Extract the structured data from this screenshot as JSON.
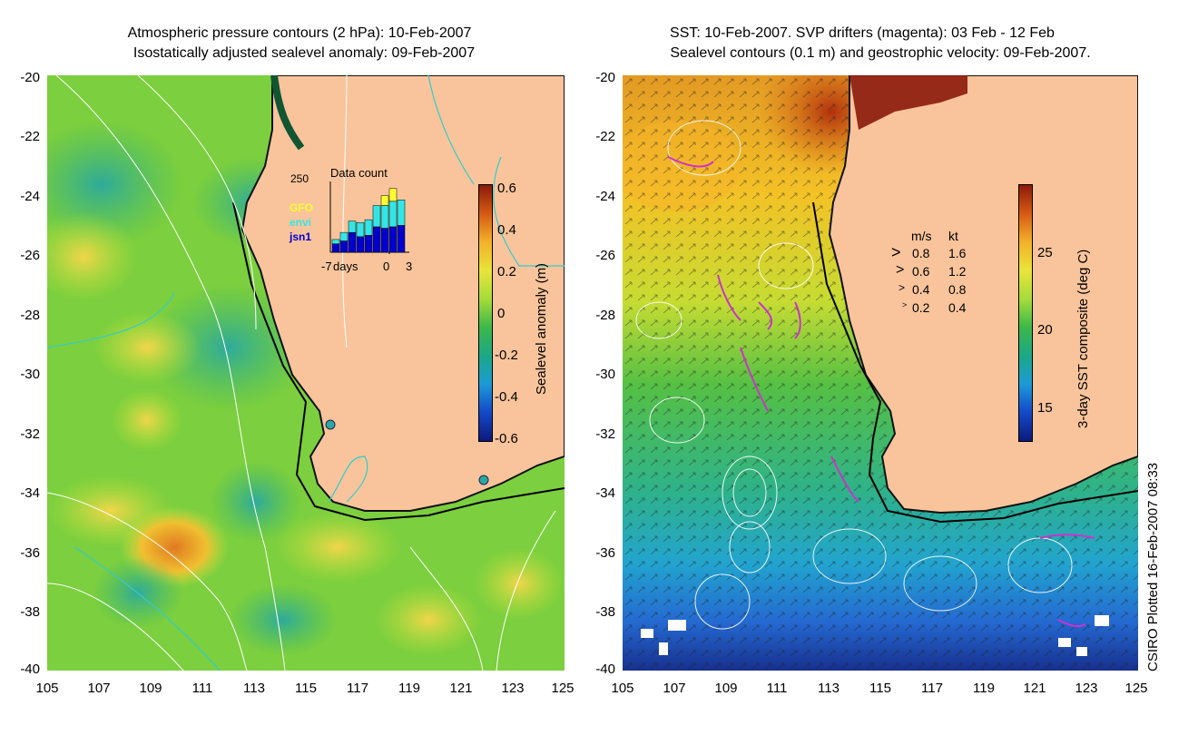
{
  "left_panel": {
    "title_line1": "Atmospheric pressure contours (2 hPa): 10-Feb-2007",
    "title_line2": "Isostatically adjusted sealevel anomaly: 09-Feb-2007",
    "x_ticks": [
      "105",
      "107",
      "109",
      "111",
      "113",
      "115",
      "117",
      "119",
      "121",
      "123",
      "125"
    ],
    "y_ticks": [
      "-20",
      "-22",
      "-24",
      "-26",
      "-28",
      "-30",
      "-32",
      "-34",
      "-36",
      "-38",
      "-40"
    ],
    "colorbar": {
      "label": "Sealevel anomaly (m)",
      "ticks": [
        "0.6",
        "0.4",
        "0.2",
        "0",
        "-0.2",
        "-0.4",
        "-0.6"
      ]
    },
    "inset": {
      "title": "Data count",
      "ymax_label": "250",
      "x_left": "-7",
      "x_days": "days",
      "x_zero": "0",
      "x_right": "3",
      "legend": [
        {
          "name": "GFO",
          "color": "#ffff33"
        },
        {
          "name": "envi",
          "color": "#33e6e6"
        },
        {
          "name": "jsn1",
          "color": "#0000cc"
        }
      ],
      "bars": [
        {
          "jsn1": 30,
          "envi": 15,
          "gfo": 0
        },
        {
          "jsn1": 40,
          "envi": 30,
          "gfo": 0
        },
        {
          "jsn1": 70,
          "envi": 40,
          "gfo": 0
        },
        {
          "jsn1": 55,
          "envi": 50,
          "gfo": 0
        },
        {
          "jsn1": 60,
          "envi": 55,
          "gfo": 0
        },
        {
          "jsn1": 90,
          "envi": 75,
          "gfo": 0
        },
        {
          "jsn1": 85,
          "envi": 80,
          "gfo": 35
        },
        {
          "jsn1": 90,
          "envi": 90,
          "gfo": 45
        },
        {
          "jsn1": 95,
          "envi": 90,
          "gfo": 0
        }
      ]
    }
  },
  "right_panel": {
    "title_line1": "SST: 10-Feb-2007. SVP drifters (magenta): 03 Feb - 12 Feb",
    "title_line2": "Sealevel contours (0.1 m) and geostrophic velocity: 09-Feb-2007.",
    "x_ticks": [
      "105",
      "107",
      "109",
      "111",
      "113",
      "115",
      "117",
      "119",
      "121",
      "123",
      "125"
    ],
    "y_ticks": [
      "-20",
      "-22",
      "-24",
      "-26",
      "-28",
      "-30",
      "-32",
      "-34",
      "-36",
      "-38",
      "-40"
    ],
    "colorbar": {
      "label": "3-day SST composite (deg C)",
      "ticks": [
        "25",
        "20",
        "15"
      ]
    },
    "velocity_legend": {
      "header_ms": "m/s",
      "header_kt": "kt",
      "rows": [
        {
          "ms": "0.8",
          "kt": "1.6"
        },
        {
          "ms": "0.6",
          "kt": "1.2"
        },
        {
          "ms": "0.4",
          "kt": "0.8"
        },
        {
          "ms": "0.2",
          "kt": "0.4"
        }
      ]
    }
  },
  "credit": "CSIRO Plotted 16-Feb-2007 08:33",
  "colors": {
    "land": "#f9c49b",
    "coast": "#000000",
    "drifter": "#cc33cc"
  }
}
